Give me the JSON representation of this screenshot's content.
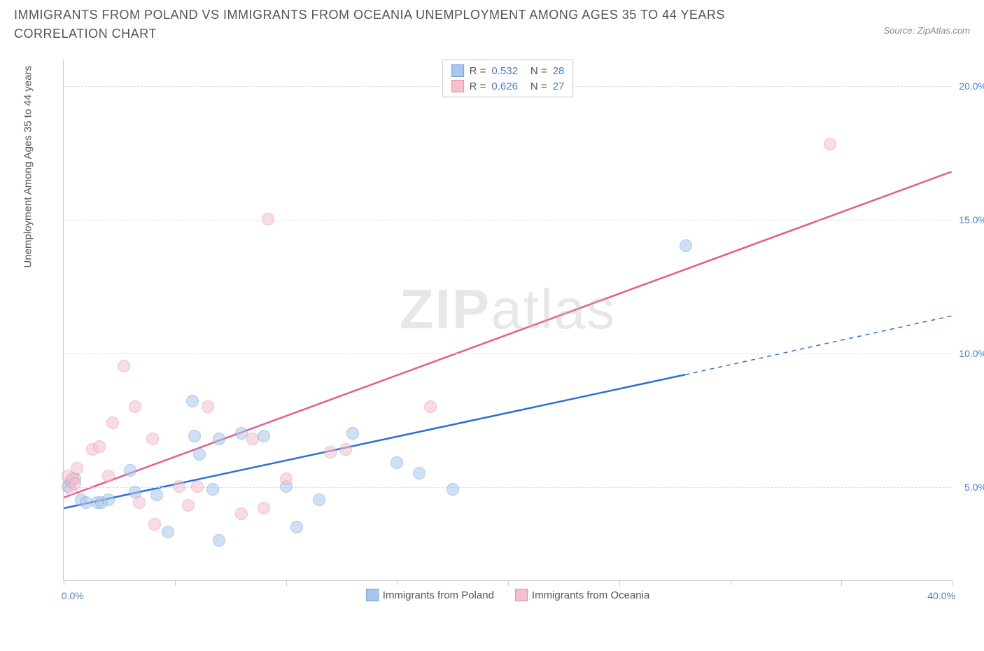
{
  "header": {
    "title": "IMMIGRANTS FROM POLAND VS IMMIGRANTS FROM OCEANIA UNEMPLOYMENT AMONG AGES 35 TO 44 YEARS CORRELATION CHART",
    "source": "Source: ZipAtlas.com"
  },
  "chart": {
    "type": "scatter",
    "ylabel": "Unemployment Among Ages 35 to 44 years",
    "x_range": [
      0,
      40
    ],
    "y_range": [
      1.5,
      21
    ],
    "x_ticks": [
      0,
      5,
      10,
      15,
      20,
      25,
      30,
      35,
      40
    ],
    "x_tick_labels": {
      "0": "0.0%",
      "40": "40.0%"
    },
    "y_ticks": [
      5,
      10,
      15,
      20
    ],
    "y_tick_labels": {
      "5": "5.0%",
      "10": "10.0%",
      "15": "15.0%",
      "20": "20.0%"
    },
    "background_color": "#ffffff",
    "grid_color": "#dddddd",
    "axis_color": "#cccccc",
    "tick_label_color": "#4a7ec9",
    "watermark": "ZIPatlas",
    "series": [
      {
        "name": "Immigrants from Poland",
        "color_fill": "#a9c6ec",
        "color_stroke": "#6f9edb",
        "trend_color": "#2d6fd1",
        "marker_radius": 9,
        "fill_opacity": 0.55,
        "R": "0.532",
        "N": "28",
        "trend": {
          "x1": 0,
          "y1": 4.2,
          "x2": 28,
          "y2": 9.2,
          "dash_from_x": 28,
          "dash_to_x": 40,
          "y_at_dash_end": 11.4
        },
        "points": [
          [
            0.2,
            5.0
          ],
          [
            0.3,
            5.2
          ],
          [
            0.5,
            5.3
          ],
          [
            0.8,
            4.5
          ],
          [
            1.0,
            4.4
          ],
          [
            1.5,
            4.4
          ],
          [
            1.7,
            4.4
          ],
          [
            2.0,
            4.5
          ],
          [
            3.0,
            5.6
          ],
          [
            3.2,
            4.8
          ],
          [
            4.2,
            4.7
          ],
          [
            4.7,
            3.3
          ],
          [
            5.8,
            8.2
          ],
          [
            5.9,
            6.9
          ],
          [
            6.1,
            6.2
          ],
          [
            6.7,
            4.9
          ],
          [
            7.0,
            3.0
          ],
          [
            7.0,
            6.8
          ],
          [
            8.0,
            7.0
          ],
          [
            9.0,
            6.9
          ],
          [
            10.0,
            5.0
          ],
          [
            10.5,
            3.5
          ],
          [
            11.5,
            4.5
          ],
          [
            13.0,
            7.0
          ],
          [
            15.0,
            5.9
          ],
          [
            16.0,
            5.5
          ],
          [
            17.5,
            4.9
          ],
          [
            28.0,
            14.0
          ]
        ]
      },
      {
        "name": "Immigrants from Oceania",
        "color_fill": "#f4c0cd",
        "color_stroke": "#e88aa5",
        "trend_color": "#e65c8a",
        "marker_radius": 9,
        "fill_opacity": 0.55,
        "R": "0.626",
        "N": "27",
        "trend": {
          "x1": 0,
          "y1": 4.6,
          "x2": 40,
          "y2": 16.8
        },
        "points": [
          [
            0.2,
            5.4
          ],
          [
            0.3,
            4.9
          ],
          [
            0.4,
            5.3
          ],
          [
            0.5,
            5.1
          ],
          [
            0.6,
            5.7
          ],
          [
            1.3,
            6.4
          ],
          [
            1.6,
            6.5
          ],
          [
            2.0,
            5.4
          ],
          [
            2.2,
            7.4
          ],
          [
            2.7,
            9.5
          ],
          [
            3.2,
            8.0
          ],
          [
            3.4,
            4.4
          ],
          [
            4.0,
            6.8
          ],
          [
            4.1,
            3.6
          ],
          [
            5.2,
            5.0
          ],
          [
            5.6,
            4.3
          ],
          [
            6.0,
            5.0
          ],
          [
            6.5,
            8.0
          ],
          [
            8.0,
            4.0
          ],
          [
            8.5,
            6.8
          ],
          [
            9.0,
            4.2
          ],
          [
            9.2,
            15.0
          ],
          [
            10.0,
            5.3
          ],
          [
            12.0,
            6.3
          ],
          [
            12.7,
            6.4
          ],
          [
            16.5,
            8.0
          ],
          [
            34.5,
            17.8
          ]
        ]
      }
    ],
    "legend_bottom": [
      {
        "label": "Immigrants from Poland",
        "fill": "#a9c6ec",
        "stroke": "#6f9edb"
      },
      {
        "label": "Immigrants from Oceania",
        "fill": "#f4c0cd",
        "stroke": "#e88aa5"
      }
    ]
  }
}
